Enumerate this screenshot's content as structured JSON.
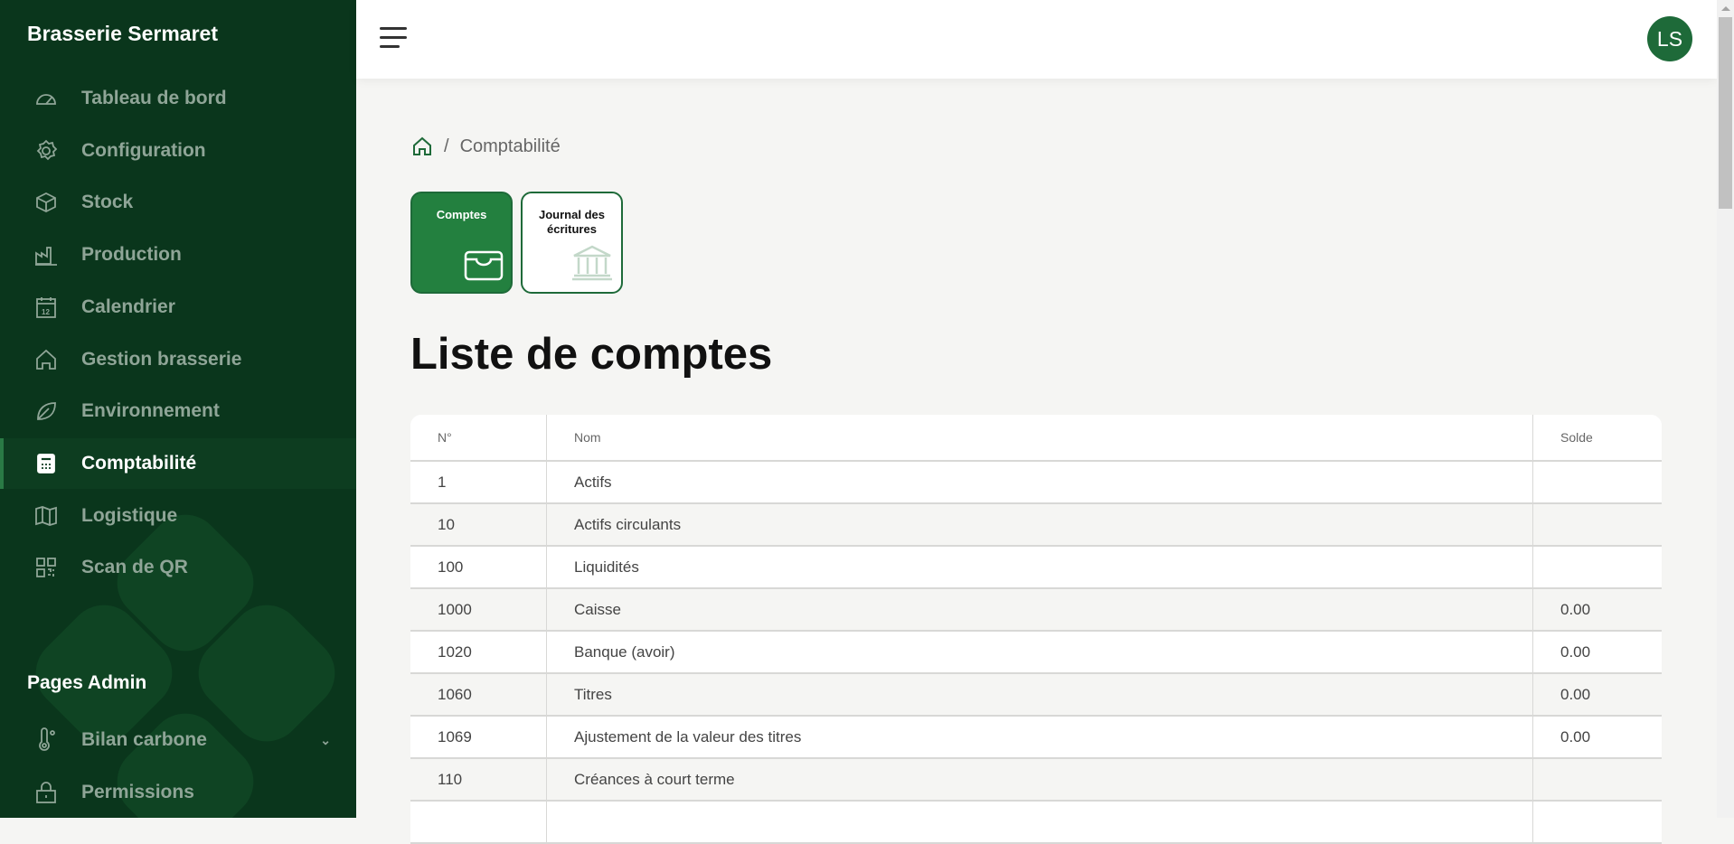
{
  "sidebar": {
    "brand": "Brasserie Sermaret",
    "items": [
      {
        "label": "Tableau de bord",
        "icon": "gauge-icon"
      },
      {
        "label": "Configuration",
        "icon": "gear-icon"
      },
      {
        "label": "Stock",
        "icon": "box-icon"
      },
      {
        "label": "Production",
        "icon": "factory-icon"
      },
      {
        "label": "Calendrier",
        "icon": "calendar-icon"
      },
      {
        "label": "Gestion brasserie",
        "icon": "home-icon"
      },
      {
        "label": "Environnement",
        "icon": "leaf-icon"
      },
      {
        "label": "Comptabilité",
        "icon": "calculator-icon",
        "active": true
      },
      {
        "label": "Logistique",
        "icon": "map-icon"
      },
      {
        "label": "Scan de QR",
        "icon": "qr-icon"
      }
    ],
    "admin_title": "Pages Admin",
    "admin_items": [
      {
        "label": "Bilan carbone",
        "icon": "thermometer-icon"
      },
      {
        "label": "Permissions",
        "icon": "lock-icon"
      }
    ]
  },
  "header": {
    "avatar": "LS",
    "accent": "#1e6a39"
  },
  "breadcrumb": {
    "current": "Comptabilité"
  },
  "cards": [
    {
      "label": "Comptes",
      "icon": "wallet-icon",
      "active": true
    },
    {
      "label": "Journal des écritures",
      "icon": "bank-icon"
    }
  ],
  "page_title": "Liste de comptes",
  "table": {
    "headers": [
      "N°",
      "Nom",
      "Solde"
    ],
    "rows": [
      [
        "1",
        "Actifs",
        ""
      ],
      [
        "10",
        "Actifs circulants",
        ""
      ],
      [
        "100",
        "Liquidités",
        ""
      ],
      [
        "1000",
        "Caisse",
        "0.00"
      ],
      [
        "1020",
        "Banque (avoir)",
        "0.00"
      ],
      [
        "1060",
        "Titres",
        "0.00"
      ],
      [
        "1069",
        "Ajustement de la valeur des titres",
        "0.00"
      ],
      [
        "110",
        "Créances à court terme",
        ""
      ],
      [
        "",
        "",
        ""
      ]
    ]
  }
}
